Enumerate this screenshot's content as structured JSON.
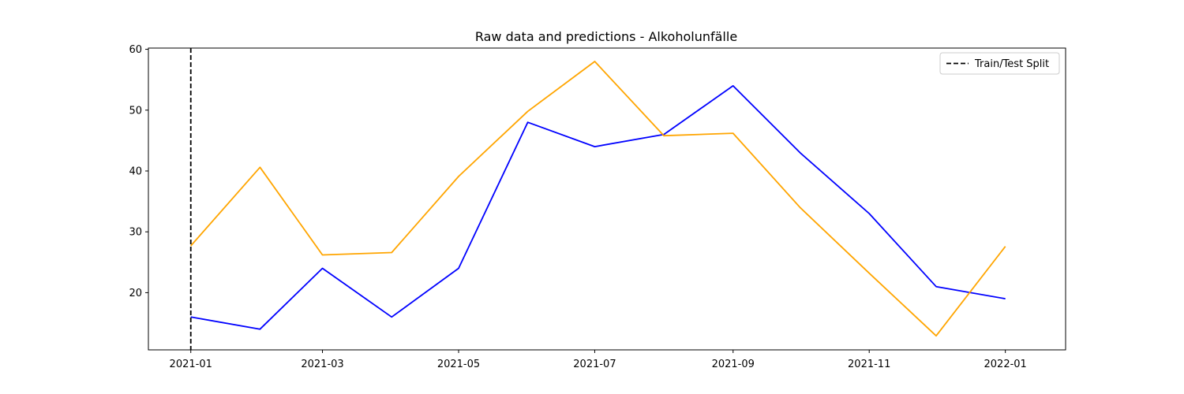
{
  "chart_data": {
    "type": "line",
    "title": "Raw data and predictions - Alkoholunfälle",
    "xlabel": "",
    "ylabel": "",
    "x": [
      "2021-01-01",
      "2021-02-01",
      "2021-03-01",
      "2021-04-01",
      "2021-05-01",
      "2021-06-01",
      "2021-07-01",
      "2021-08-01",
      "2021-09-01",
      "2021-10-01",
      "2021-11-01",
      "2021-12-01",
      "2022-01-01"
    ],
    "x_ticks": [
      "2021-01",
      "2021-03",
      "2021-05",
      "2021-07",
      "2021-09",
      "2021-11",
      "2022-01"
    ],
    "xlim": [
      "2020-12-13",
      "2022-01-28"
    ],
    "ylim": [
      10.6,
      60.2
    ],
    "y_ticks": [
      20,
      30,
      40,
      50,
      60
    ],
    "series": [
      {
        "color": "#0000ff",
        "values": [
          16,
          14,
          24,
          16,
          24,
          48,
          44,
          46,
          54,
          43,
          33,
          21,
          19
        ]
      },
      {
        "color": "#ffa500",
        "values": [
          27.7,
          40.6,
          26.2,
          26.6,
          39.1,
          49.8,
          58.0,
          45.8,
          46.2,
          34.0,
          23.2,
          12.9,
          27.6
        ]
      }
    ],
    "split": {
      "x": "2021-01-01",
      "label": "Train/Test Split",
      "color": "#000000"
    },
    "legend": {
      "position": "top-right",
      "entries": [
        "Train/Test Split"
      ]
    },
    "grid": false
  }
}
